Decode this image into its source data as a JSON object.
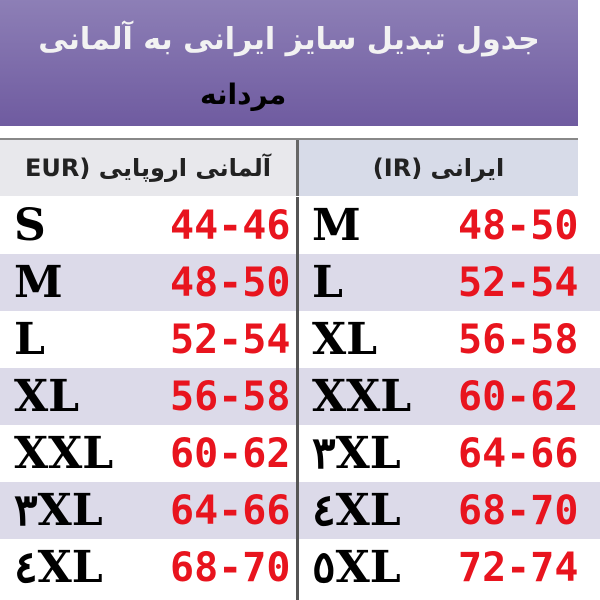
{
  "header": {
    "title": "جدول تبدیل سایز ایرانی به آلمانی",
    "subtitle": "مردانه"
  },
  "table": {
    "columns": [
      "آلمانی اروپایی (EUR",
      "ایرانی (IR)"
    ],
    "rows": [
      [
        "S",
        "44-46",
        "M",
        "48-50"
      ],
      [
        "M",
        "48-50",
        "L",
        "52-54"
      ],
      [
        "L",
        "52-54",
        "XL",
        "56-58"
      ],
      [
        "XL",
        "56-58",
        "XXL",
        "60-62"
      ],
      [
        "XXL",
        "60-62",
        "٣XL",
        "64-66"
      ],
      [
        "٣XL",
        "64-66",
        "٤XL",
        "68-70"
      ],
      [
        "٤XL",
        "68-70",
        "٥XL",
        "72-74"
      ]
    ]
  }
}
